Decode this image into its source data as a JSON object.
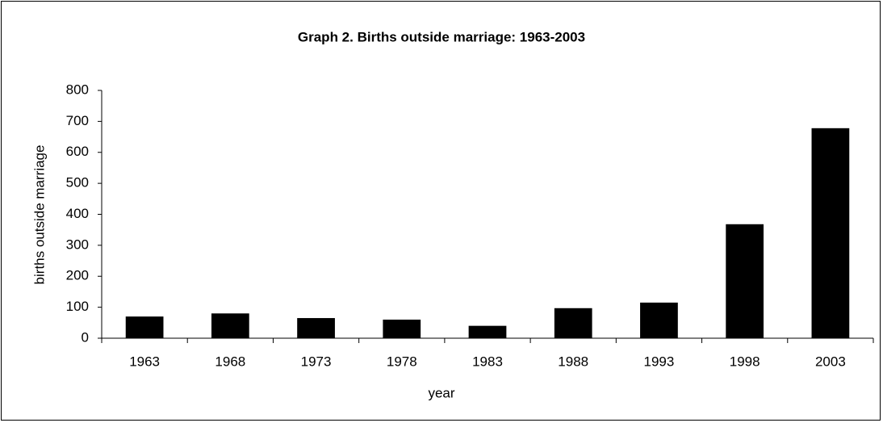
{
  "chart_data": {
    "type": "bar",
    "title": "Graph 2.  Births outside marriage: 1963-2003",
    "xlabel": "year",
    "ylabel": "births outside marriage",
    "categories": [
      "1963",
      "1968",
      "1973",
      "1978",
      "1983",
      "1988",
      "1993",
      "1998",
      "2003"
    ],
    "values": [
      70,
      80,
      65,
      60,
      40,
      97,
      115,
      368,
      678
    ],
    "color": "#000000",
    "ylim": [
      0,
      800
    ],
    "yticks": [
      0,
      100,
      200,
      300,
      400,
      500,
      600,
      700,
      800
    ],
    "grid": false
  }
}
